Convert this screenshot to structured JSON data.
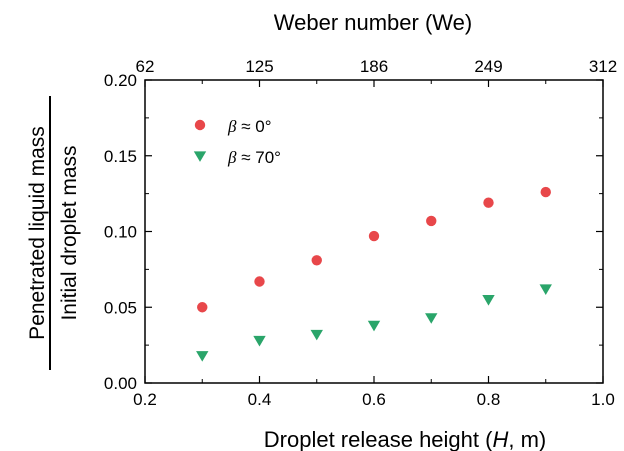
{
  "chart_data": {
    "type": "scatter",
    "xlabel": "Droplet release height (",
    "xlabel_italic": "H",
    "xlabel_unit": ", m)",
    "top_xlabel": "Weber number (We)",
    "ylabel_numerator": "Penetrated liquid mass",
    "ylabel_denominator": "Initial droplet mass",
    "xlim": [
      0.2,
      1.0
    ],
    "ylim": [
      0.0,
      0.2
    ],
    "x_ticks": [
      "0.2",
      "0.4",
      "0.6",
      "0.8",
      "1.0"
    ],
    "y_ticks": [
      "0.00",
      "0.05",
      "0.10",
      "0.15",
      "0.20"
    ],
    "top_ticks": [
      "62",
      "125",
      "186",
      "249",
      "312"
    ],
    "legend_placement": "top-left",
    "series": [
      {
        "name": "β ≈ 0°",
        "symbol": "β",
        "suffix": " ≈ 0°",
        "marker": "circle",
        "color": "#e8474a",
        "x": [
          0.3,
          0.4,
          0.5,
          0.6,
          0.7,
          0.8,
          0.9
        ],
        "y": [
          0.05,
          0.067,
          0.081,
          0.097,
          0.107,
          0.119,
          0.126
        ]
      },
      {
        "name": "β ≈ 70°",
        "symbol": "β",
        "suffix": " ≈ 70°",
        "marker": "triangle-down",
        "color": "#2aa56a",
        "x": [
          0.3,
          0.4,
          0.5,
          0.6,
          0.7,
          0.8,
          0.9
        ],
        "y": [
          0.018,
          0.028,
          0.032,
          0.038,
          0.043,
          0.055,
          0.062
        ]
      }
    ]
  }
}
